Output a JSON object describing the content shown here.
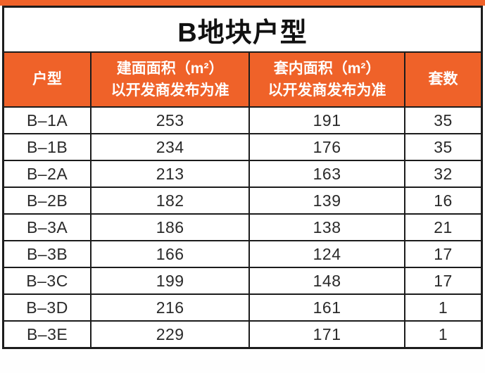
{
  "colors": {
    "accent_orange": "#EF6229",
    "border_black": "#1C1C1C",
    "header_text": "#FFFFFF",
    "body_text": "#2A2A2A"
  },
  "chart_data": {
    "type": "table",
    "title": "B地块户型",
    "columns": [
      {
        "label": "户型",
        "sublabel": ""
      },
      {
        "label": "建面面积（m²）",
        "sublabel": "以开发商发布为准"
      },
      {
        "label": "套内面积（m²）",
        "sublabel": "以开发商发布为准"
      },
      {
        "label": "套数",
        "sublabel": ""
      }
    ],
    "rows": [
      {
        "unit_type": "B–1A",
        "gross_area": "253",
        "inner_area": "191",
        "unit_count": "35"
      },
      {
        "unit_type": "B–1B",
        "gross_area": "234",
        "inner_area": "176",
        "unit_count": "35"
      },
      {
        "unit_type": "B–2A",
        "gross_area": "213",
        "inner_area": "163",
        "unit_count": "32"
      },
      {
        "unit_type": "B–2B",
        "gross_area": "182",
        "inner_area": "139",
        "unit_count": "16"
      },
      {
        "unit_type": "B–3A",
        "gross_area": "186",
        "inner_area": "138",
        "unit_count": "21"
      },
      {
        "unit_type": "B–3B",
        "gross_area": "166",
        "inner_area": "124",
        "unit_count": "17"
      },
      {
        "unit_type": "B–3C",
        "gross_area": "199",
        "inner_area": "148",
        "unit_count": "17"
      },
      {
        "unit_type": "B–3D",
        "gross_area": "216",
        "inner_area": "161",
        "unit_count": "1"
      },
      {
        "unit_type": "B–3E",
        "gross_area": "229",
        "inner_area": "171",
        "unit_count": "1"
      }
    ]
  }
}
